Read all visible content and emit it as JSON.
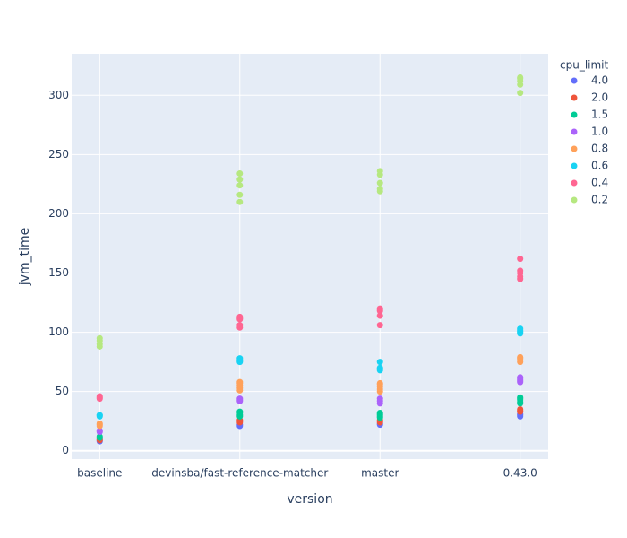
{
  "chart_data": {
    "type": "scatter",
    "xlabel": "version",
    "ylabel": "jvm_time",
    "legend_title": "cpu_limit",
    "categories": [
      "baseline",
      "devinsba/fast-reference-matcher",
      "master",
      "0.43.0"
    ],
    "ylim": [
      -7,
      335
    ],
    "yticks": [
      0,
      50,
      100,
      150,
      200,
      250,
      300
    ],
    "grid": true,
    "legend": "right",
    "series": [
      {
        "name": "4.0",
        "color": "#636efa",
        "x": [
          "baseline",
          "baseline",
          "devinsba/fast-reference-matcher",
          "devinsba/fast-reference-matcher",
          "master",
          "master",
          "0.43.0",
          "0.43.0",
          "0.43.0"
        ],
        "values": [
          8,
          9,
          21,
          22,
          22,
          23,
          29,
          30,
          31
        ]
      },
      {
        "name": "2.0",
        "color": "#EF553B",
        "x": [
          "baseline",
          "baseline",
          "devinsba/fast-reference-matcher",
          "devinsba/fast-reference-matcher",
          "devinsba/fast-reference-matcher",
          "master",
          "master",
          "master",
          "0.43.0",
          "0.43.0",
          "0.43.0"
        ],
        "values": [
          9,
          10,
          24,
          25,
          26,
          24,
          25,
          26,
          33,
          34,
          35
        ]
      },
      {
        "name": "1.5",
        "color": "#00cc96",
        "x": [
          "baseline",
          "baseline",
          "devinsba/fast-reference-matcher",
          "devinsba/fast-reference-matcher",
          "devinsba/fast-reference-matcher",
          "devinsba/fast-reference-matcher",
          "master",
          "master",
          "master",
          "master",
          "master",
          "0.43.0",
          "0.43.0",
          "0.43.0",
          "0.43.0",
          "0.43.0"
        ],
        "values": [
          11,
          12,
          29,
          30,
          32,
          33,
          28,
          29,
          30,
          31,
          32,
          40,
          41,
          43,
          44,
          45
        ]
      },
      {
        "name": "1.0",
        "color": "#ab63fa",
        "x": [
          "baseline",
          "baseline",
          "devinsba/fast-reference-matcher",
          "devinsba/fast-reference-matcher",
          "devinsba/fast-reference-matcher",
          "master",
          "master",
          "master",
          "0.43.0",
          "0.43.0",
          "0.43.0",
          "0.43.0",
          "0.43.0"
        ],
        "values": [
          16,
          17,
          42,
          43,
          44,
          40,
          42,
          44,
          58,
          59,
          60,
          61,
          62
        ]
      },
      {
        "name": "0.8",
        "color": "#FFA15A",
        "x": [
          "baseline",
          "baseline",
          "baseline",
          "devinsba/fast-reference-matcher",
          "devinsba/fast-reference-matcher",
          "devinsba/fast-reference-matcher",
          "devinsba/fast-reference-matcher",
          "devinsba/fast-reference-matcher",
          "master",
          "master",
          "master",
          "master",
          "master",
          "0.43.0",
          "0.43.0",
          "0.43.0",
          "0.43.0"
        ],
        "values": [
          21,
          22,
          23,
          51,
          53,
          55,
          57,
          58,
          50,
          52,
          54,
          56,
          57,
          75,
          77,
          78,
          79
        ]
      },
      {
        "name": "0.6",
        "color": "#19d3f3",
        "x": [
          "baseline",
          "baseline",
          "baseline",
          "devinsba/fast-reference-matcher",
          "devinsba/fast-reference-matcher",
          "devinsba/fast-reference-matcher",
          "devinsba/fast-reference-matcher",
          "master",
          "master",
          "master",
          "master",
          "0.43.0",
          "0.43.0",
          "0.43.0",
          "0.43.0",
          "0.43.0"
        ],
        "values": [
          29,
          30,
          30,
          75,
          76,
          77,
          78,
          68,
          69,
          70,
          75,
          99,
          100,
          101,
          102,
          103
        ]
      },
      {
        "name": "0.4",
        "color": "#FF6692",
        "x": [
          "baseline",
          "baseline",
          "baseline",
          "devinsba/fast-reference-matcher",
          "devinsba/fast-reference-matcher",
          "devinsba/fast-reference-matcher",
          "devinsba/fast-reference-matcher",
          "devinsba/fast-reference-matcher",
          "master",
          "master",
          "master",
          "master",
          "master",
          "0.43.0",
          "0.43.0",
          "0.43.0",
          "0.43.0",
          "0.43.0"
        ],
        "values": [
          44,
          45,
          46,
          104,
          106,
          111,
          112,
          113,
          106,
          114,
          118,
          119,
          120,
          145,
          147,
          150,
          152,
          162
        ]
      },
      {
        "name": "0.2",
        "color": "#B6E880",
        "x": [
          "baseline",
          "baseline",
          "baseline",
          "baseline",
          "devinsba/fast-reference-matcher",
          "devinsba/fast-reference-matcher",
          "devinsba/fast-reference-matcher",
          "devinsba/fast-reference-matcher",
          "devinsba/fast-reference-matcher",
          "master",
          "master",
          "master",
          "master",
          "master",
          "0.43.0",
          "0.43.0",
          "0.43.0",
          "0.43.0",
          "0.43.0"
        ],
        "values": [
          88,
          90,
          93,
          95,
          210,
          216,
          224,
          229,
          234,
          219,
          221,
          226,
          233,
          236,
          302,
          309,
          312,
          314,
          315
        ]
      }
    ]
  }
}
